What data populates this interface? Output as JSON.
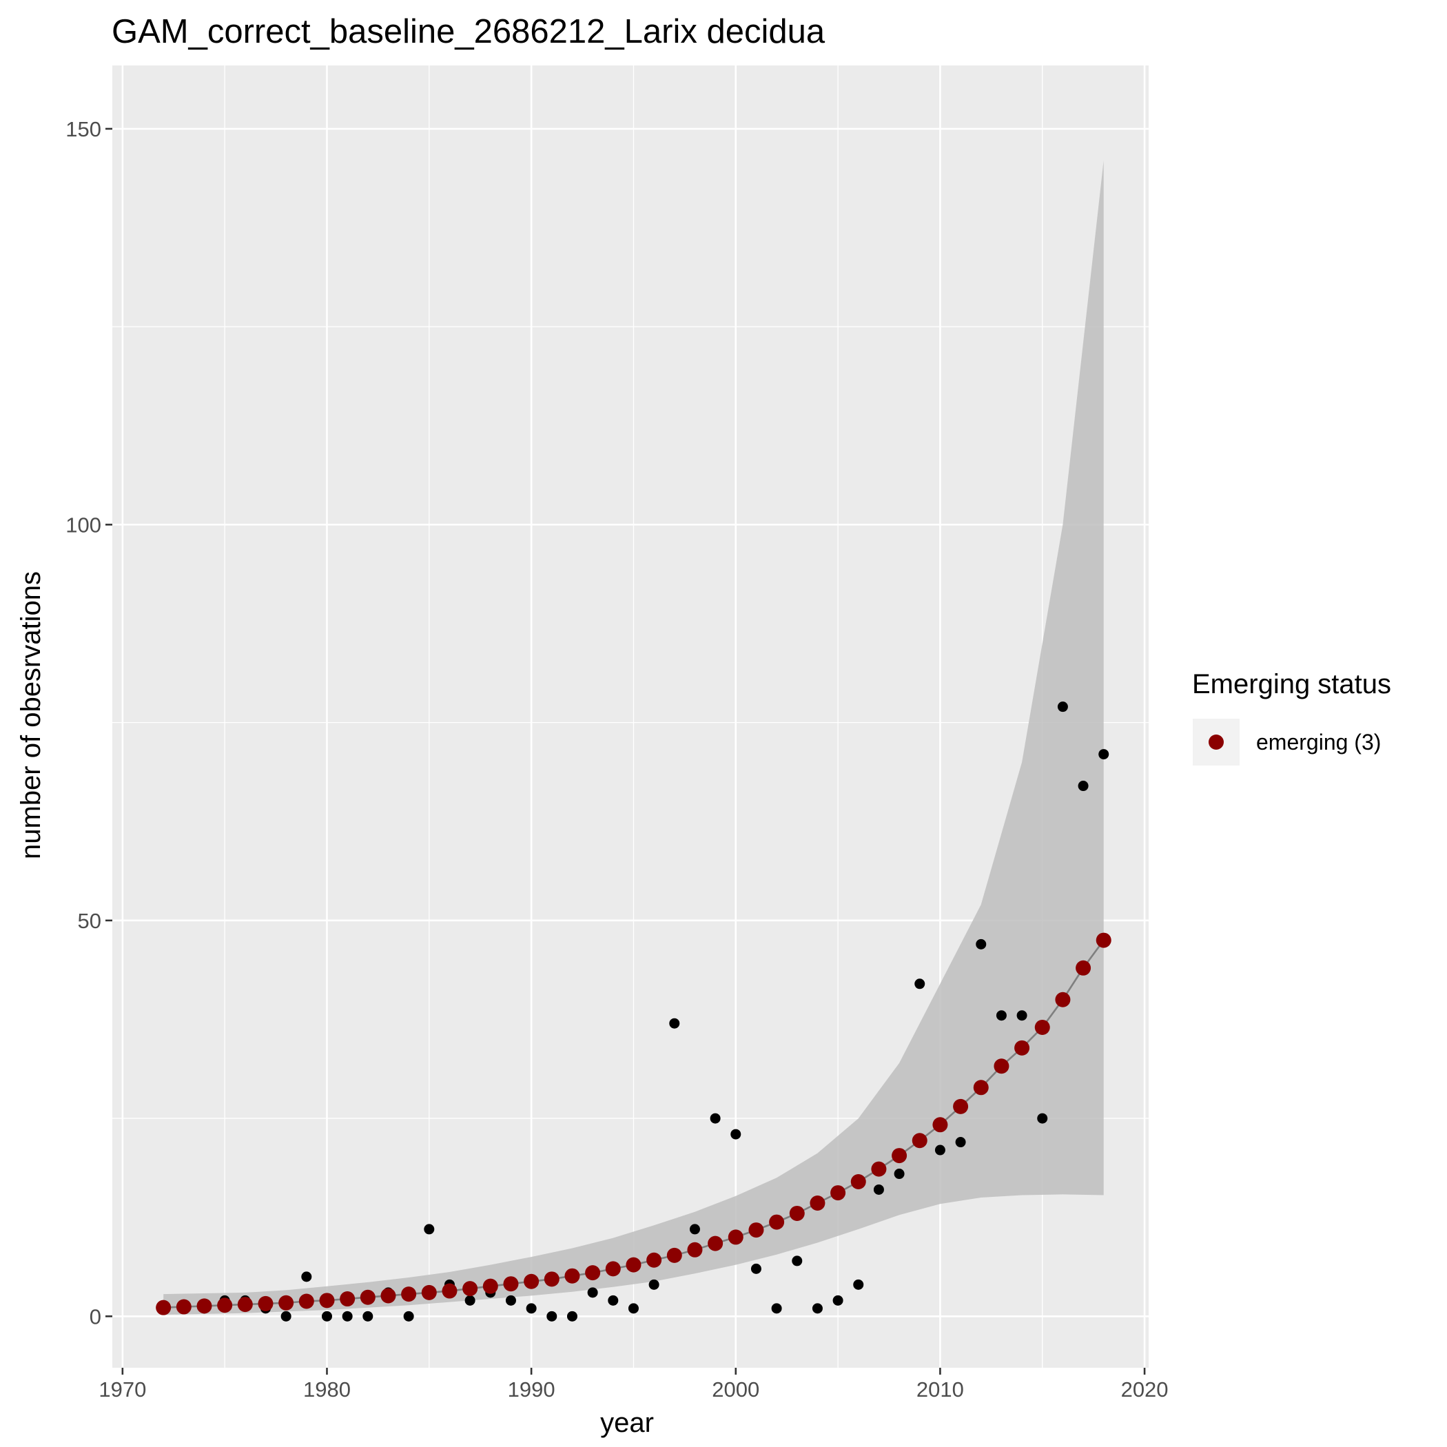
{
  "chart_data": {
    "type": "scatter",
    "title": "GAM_correct_baseline_2686212_Larix decidua",
    "xlabel": "year",
    "ylabel": "number of obesrvations",
    "xlim": [
      1969.5,
      2020.2
    ],
    "ylim": [
      -6.5,
      158
    ],
    "x_ticks": [
      1970,
      1980,
      1990,
      2000,
      2010,
      2020
    ],
    "y_ticks": [
      0,
      50,
      100,
      150
    ],
    "grid": true,
    "legend": {
      "title": "Emerging status",
      "position": "right",
      "entries": [
        {
          "label": "emerging (3)",
          "color": "#8b0000"
        }
      ]
    },
    "colors": {
      "panel": "#ebebeb",
      "grid": "#ffffff",
      "band": "#bebebe",
      "fit_line": "#7f7f7f",
      "observed": "#000000",
      "fitted": "#8b0000"
    },
    "observed": {
      "x": [
        1972,
        1973,
        1974,
        1975,
        1976,
        1977,
        1978,
        1979,
        1980,
        1981,
        1982,
        1983,
        1984,
        1985,
        1986,
        1987,
        1988,
        1989,
        1990,
        1991,
        1992,
        1993,
        1994,
        1995,
        1996,
        1997,
        1998,
        1999,
        2000,
        2001,
        2002,
        2003,
        2004,
        2005,
        2006,
        2007,
        2008,
        2009,
        2010,
        2011,
        2012,
        2013,
        2014,
        2015,
        2016,
        2017,
        2018
      ],
      "y": [
        1,
        1,
        1,
        2,
        2,
        1,
        0,
        5,
        0,
        0,
        0,
        3,
        0,
        11,
        4,
        2,
        3,
        2,
        1,
        0,
        0,
        3,
        2,
        1,
        4,
        37,
        11,
        25,
        23,
        6,
        1,
        7,
        1,
        2,
        4,
        16,
        18,
        42,
        21,
        22,
        47,
        38,
        38,
        25,
        77,
        67,
        71
      ]
    },
    "fitted": {
      "x": [
        1972,
        1973,
        1974,
        1975,
        1976,
        1977,
        1978,
        1979,
        1980,
        1981,
        1982,
        1983,
        1984,
        1985,
        1986,
        1987,
        1988,
        1989,
        1990,
        1991,
        1992,
        1993,
        1994,
        1995,
        1996,
        1997,
        1998,
        1999,
        2000,
        2001,
        2002,
        2003,
        2004,
        2005,
        2006,
        2007,
        2008,
        2009,
        2010,
        2011,
        2012,
        2013,
        2014,
        2015,
        2016,
        2017,
        2018
      ],
      "y": [
        1.1,
        1.2,
        1.3,
        1.4,
        1.5,
        1.6,
        1.7,
        1.9,
        2.0,
        2.2,
        2.4,
        2.6,
        2.8,
        3.0,
        3.2,
        3.5,
        3.8,
        4.1,
        4.4,
        4.7,
        5.1,
        5.5,
        6.0,
        6.5,
        7.1,
        7.7,
        8.4,
        9.2,
        10.0,
        10.9,
        11.9,
        13.0,
        14.3,
        15.6,
        17.0,
        18.6,
        20.3,
        22.2,
        24.2,
        26.5,
        28.9,
        31.6,
        33.9,
        36.5,
        40.0,
        44.0,
        47.5
      ]
    },
    "confidence_band": {
      "x": [
        1972,
        1974,
        1976,
        1978,
        1980,
        1982,
        1984,
        1986,
        1988,
        1990,
        1992,
        1994,
        1996,
        1998,
        2000,
        2002,
        2004,
        2006,
        2008,
        2010,
        2012,
        2014,
        2016,
        2018
      ],
      "lower": [
        0.2,
        0.3,
        0.4,
        0.6,
        0.8,
        1.1,
        1.4,
        1.8,
        2.2,
        2.6,
        3.1,
        3.7,
        4.4,
        5.4,
        6.5,
        7.8,
        9.3,
        11.0,
        12.8,
        14.2,
        15.0,
        15.3,
        15.4,
        15.3
      ],
      "upper": [
        2.8,
        2.9,
        3.0,
        3.3,
        3.8,
        4.3,
        4.9,
        5.6,
        6.5,
        7.5,
        8.6,
        9.9,
        11.5,
        13.2,
        15.2,
        17.5,
        20.6,
        25.0,
        32.0,
        42.0,
        52.0,
        70.0,
        100.0,
        146.0
      ]
    }
  }
}
